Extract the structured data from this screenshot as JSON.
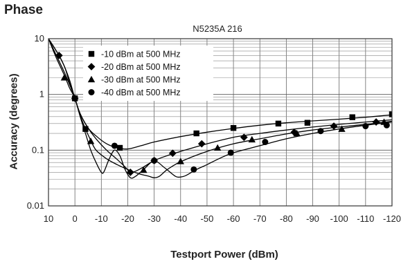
{
  "page": {
    "heading": "Phase"
  },
  "chart_data": {
    "type": "line",
    "title": "N5235A 216",
    "xlabel": "Testport Power (dBm)",
    "ylabel": "Accuracy (degrees)",
    "xlim": [
      10,
      -120
    ],
    "ylim": [
      0.01,
      10
    ],
    "yscale": "log",
    "grid": true,
    "legend_position": "top-left",
    "xticks": [
      10,
      0,
      -10,
      -20,
      -30,
      -40,
      -50,
      -60,
      -70,
      -80,
      -90,
      -100,
      -110,
      -120
    ],
    "xtick_labels": [
      "10",
      "0",
      "-10",
      "-20",
      "-30",
      "-40",
      "-50",
      "-60",
      "-70",
      "-80",
      "-90",
      "-100",
      "-110",
      "-120"
    ],
    "yticks": [
      0.01,
      0.1,
      1,
      10
    ],
    "ytick_labels": [
      "0.01",
      "0.1",
      "1",
      "10"
    ],
    "series": [
      {
        "name": "-10 dBm at 500 MHz",
        "marker": "square",
        "curve": [
          [
            10,
            10
          ],
          [
            7,
            6
          ],
          [
            4,
            3.2
          ],
          [
            2,
            1.6
          ],
          [
            0,
            0.85
          ],
          [
            -2,
            0.45
          ],
          [
            -5,
            0.25
          ],
          [
            -8,
            0.18
          ],
          [
            -12,
            0.13
          ],
          [
            -16,
            0.11
          ],
          [
            -20,
            0.105
          ],
          [
            -25,
            0.12
          ],
          [
            -30,
            0.14
          ],
          [
            -40,
            0.175
          ],
          [
            -50,
            0.21
          ],
          [
            -60,
            0.245
          ],
          [
            -70,
            0.28
          ],
          [
            -80,
            0.31
          ],
          [
            -90,
            0.335
          ],
          [
            -100,
            0.36
          ],
          [
            -110,
            0.39
          ],
          [
            -120,
            0.43
          ]
        ],
        "markers": [
          [
            0,
            0.85
          ],
          [
            -4,
            0.24
          ],
          [
            -17,
            0.11
          ],
          [
            -46,
            0.2
          ],
          [
            -60,
            0.25
          ],
          [
            -77,
            0.3
          ],
          [
            -88,
            0.31
          ],
          [
            -105,
            0.39
          ],
          [
            -120,
            0.44
          ]
        ]
      },
      {
        "name": "-20 dBm at 500 MHz",
        "marker": "diamond",
        "curve": [
          [
            10,
            10
          ],
          [
            6,
            5
          ],
          [
            4,
            3.2
          ],
          [
            2,
            1.8
          ],
          [
            0,
            0.85
          ],
          [
            -2,
            0.45
          ],
          [
            -5,
            0.25
          ],
          [
            -8,
            0.16
          ],
          [
            -12,
            0.1
          ],
          [
            -16,
            0.068
          ],
          [
            -19,
            0.05
          ],
          [
            -21,
            0.04
          ],
          [
            -23,
            0.042
          ],
          [
            -26,
            0.05
          ],
          [
            -30,
            0.065
          ],
          [
            -35,
            0.08
          ],
          [
            -40,
            0.095
          ],
          [
            -50,
            0.13
          ],
          [
            -60,
            0.17
          ],
          [
            -70,
            0.2
          ],
          [
            -80,
            0.23
          ],
          [
            -90,
            0.26
          ],
          [
            -100,
            0.29
          ],
          [
            -110,
            0.32
          ],
          [
            -120,
            0.35
          ]
        ],
        "markers": [
          [
            6,
            5
          ],
          [
            0,
            0.85
          ],
          [
            -21,
            0.04
          ],
          [
            -30,
            0.065
          ],
          [
            -37,
            0.088
          ],
          [
            -48,
            0.13
          ],
          [
            -64,
            0.17
          ],
          [
            -83,
            0.21
          ],
          [
            -98,
            0.27
          ],
          [
            -114,
            0.32
          ]
        ]
      },
      {
        "name": "-30 dBm at 500 MHz",
        "marker": "triangle",
        "curve": [
          [
            10,
            10
          ],
          [
            7,
            4.5
          ],
          [
            4,
            2.2
          ],
          [
            2,
            1.3
          ],
          [
            0,
            0.85
          ],
          [
            -2,
            0.42
          ],
          [
            -4,
            0.24
          ],
          [
            -6,
            0.15
          ],
          [
            -8,
            0.1
          ],
          [
            -12,
            0.07
          ],
          [
            -16,
            0.055
          ],
          [
            -20,
            0.045
          ],
          [
            -24,
            0.038
          ],
          [
            -28,
            0.034
          ],
          [
            -30,
            0.032
          ],
          [
            -32,
            0.034
          ],
          [
            -35,
            0.045
          ],
          [
            -40,
            0.062
          ],
          [
            -50,
            0.095
          ],
          [
            -60,
            0.13
          ],
          [
            -70,
            0.16
          ],
          [
            -80,
            0.195
          ],
          [
            -90,
            0.23
          ],
          [
            -100,
            0.26
          ],
          [
            -110,
            0.29
          ],
          [
            -120,
            0.33
          ]
        ],
        "markers": [
          [
            4,
            2
          ],
          [
            -6,
            0.145
          ],
          [
            -26,
            0.044
          ],
          [
            -40,
            0.063
          ],
          [
            -54,
            0.11
          ],
          [
            -67,
            0.155
          ],
          [
            -84,
            0.2
          ],
          [
            -101,
            0.24
          ],
          [
            -117,
            0.32
          ]
        ]
      },
      {
        "name": "-40 dBm at 500 MHz",
        "marker": "circle",
        "curve": [
          [
            10,
            10
          ],
          [
            7,
            5
          ],
          [
            4,
            2.5
          ],
          [
            2,
            1.5
          ],
          [
            0,
            0.85
          ],
          [
            -2,
            0.4
          ],
          [
            -4,
            0.2
          ],
          [
            -6,
            0.1
          ],
          [
            -8,
            0.06
          ],
          [
            -10,
            0.04
          ],
          [
            -11,
            0.041
          ],
          [
            -13,
            0.07
          ],
          [
            -15,
            0.1
          ],
          [
            -17,
            0.08
          ],
          [
            -19,
            0.045
          ],
          [
            -21,
            0.032
          ],
          [
            -23,
            0.034
          ],
          [
            -26,
            0.045
          ],
          [
            -30,
            0.064
          ],
          [
            -34,
            0.048
          ],
          [
            -38,
            0.034
          ],
          [
            -40,
            0.033
          ],
          [
            -42,
            0.035
          ],
          [
            -46,
            0.045
          ],
          [
            -50,
            0.055
          ],
          [
            -55,
            0.072
          ],
          [
            -60,
            0.09
          ],
          [
            -70,
            0.12
          ],
          [
            -80,
            0.16
          ],
          [
            -90,
            0.2
          ],
          [
            -100,
            0.24
          ],
          [
            -110,
            0.28
          ],
          [
            -120,
            0.32
          ]
        ],
        "markers": [
          [
            0,
            0.85
          ],
          [
            -15,
            0.12
          ],
          [
            -30,
            0.065
          ],
          [
            -45,
            0.045
          ],
          [
            -59,
            0.09
          ],
          [
            -72,
            0.14
          ],
          [
            -93,
            0.22
          ],
          [
            -110,
            0.27
          ],
          [
            -118,
            0.28
          ]
        ]
      }
    ]
  }
}
